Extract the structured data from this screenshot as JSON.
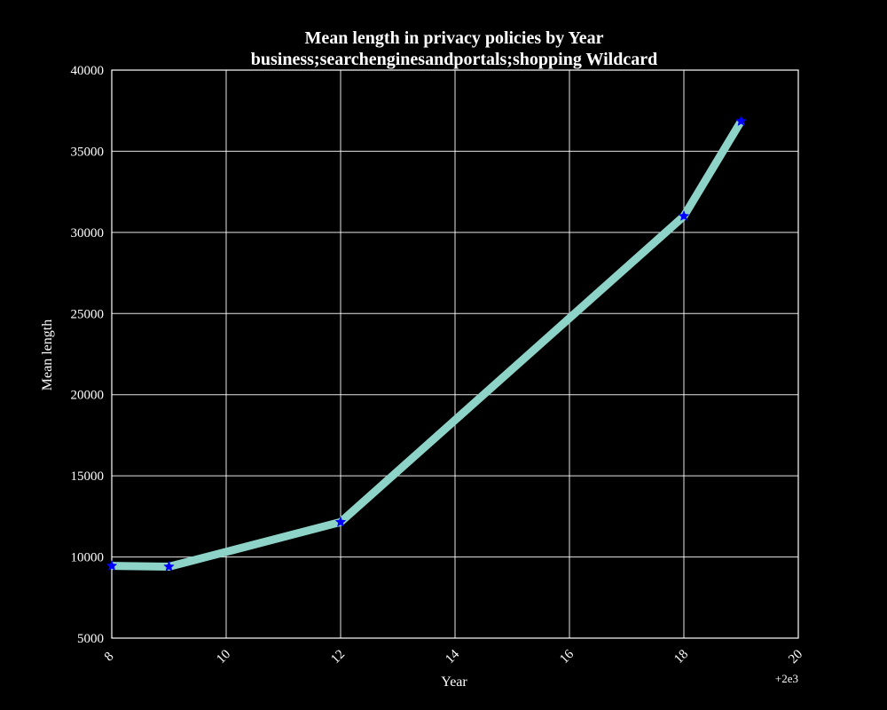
{
  "chart_data": {
    "type": "line",
    "title": "Mean length in privacy policies by Year",
    "subtitle": "business;searchenginesandportals;shopping Wildcard",
    "xlabel": "Year",
    "ylabel": "Mean length",
    "x_offset_label": "+2e3",
    "xlim": [
      8,
      20
    ],
    "ylim": [
      5000,
      40000
    ],
    "x_ticks": [
      8,
      10,
      12,
      14,
      16,
      18,
      20
    ],
    "y_ticks": [
      5000,
      10000,
      15000,
      20000,
      25000,
      30000,
      35000,
      40000
    ],
    "grid": true,
    "series": [
      {
        "x": [
          8,
          9,
          12,
          18,
          19
        ],
        "values": [
          9450,
          9400,
          12150,
          31000,
          36850
        ],
        "line_color": "#8dd3c7",
        "marker_color": "#0000ff",
        "marker": "star"
      }
    ]
  }
}
